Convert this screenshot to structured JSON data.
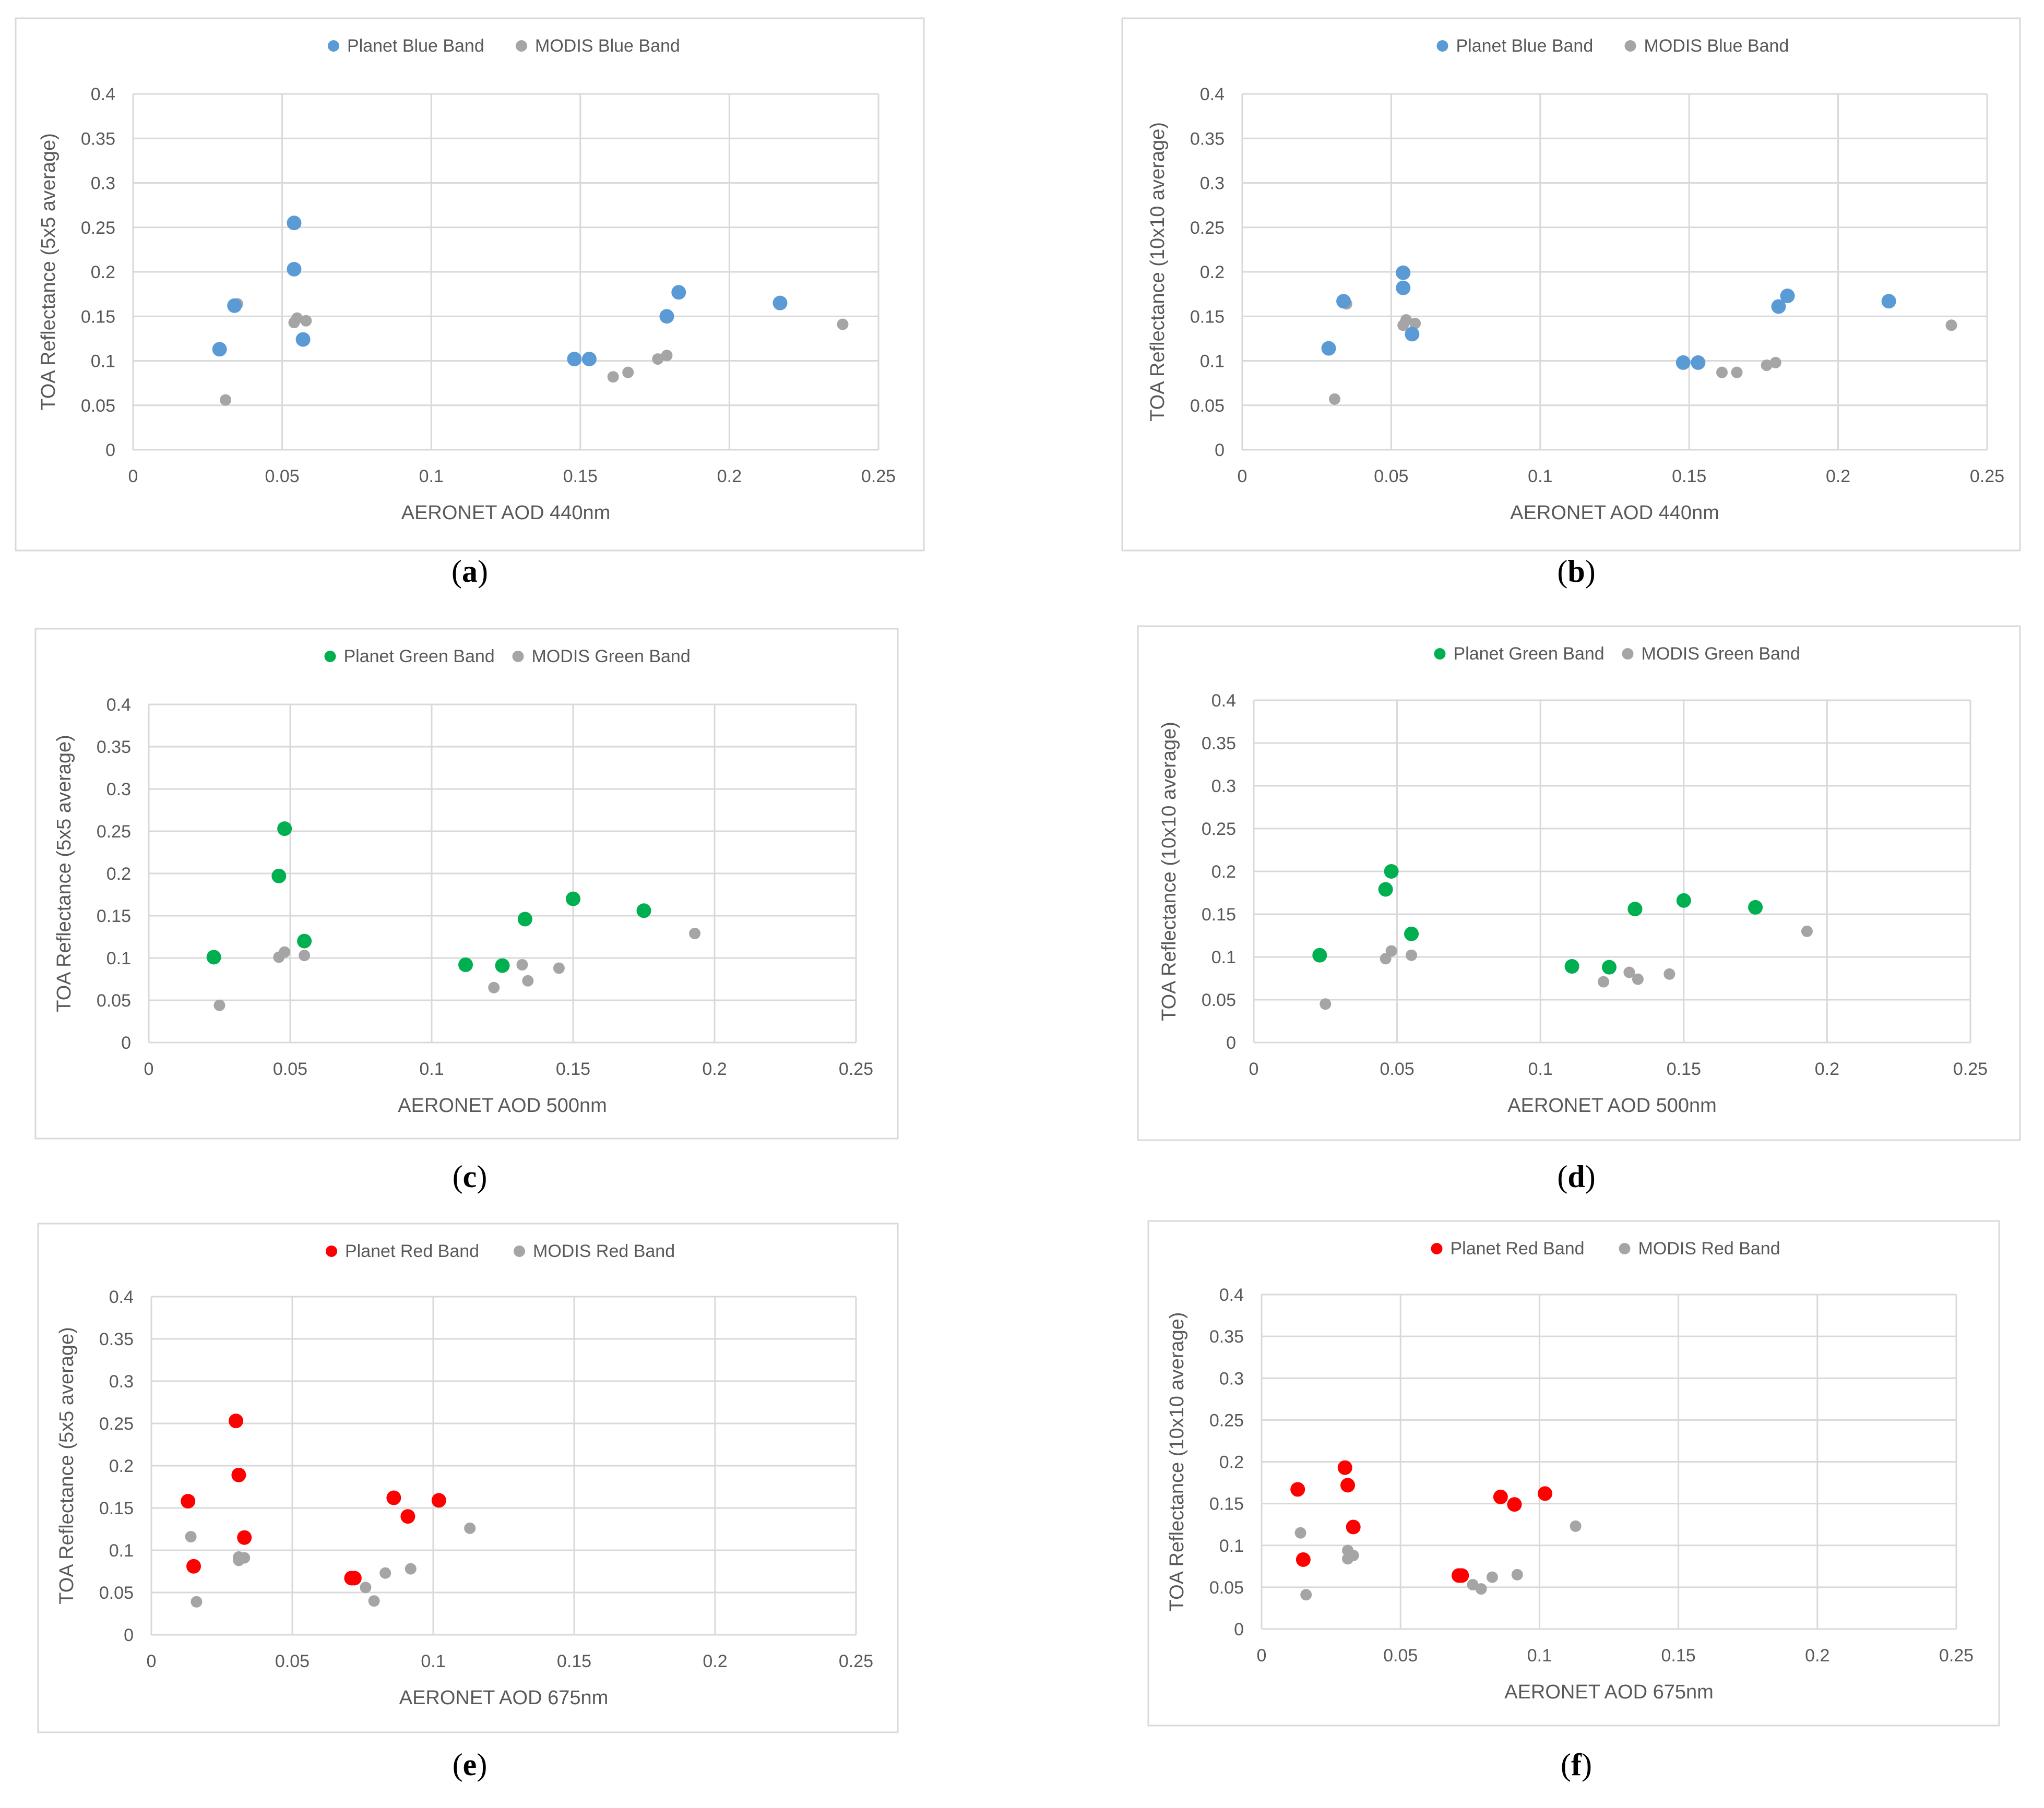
{
  "chart_data": [
    {
      "panel": "a",
      "caption_letter": "a",
      "type": "scatter",
      "xlabel": "AERONET AOD 440nm",
      "ylabel": "TOA Reflectance (5x5 average)",
      "xlim": [
        0,
        0.25
      ],
      "ylim": [
        0,
        0.4
      ],
      "xticks": [
        "0",
        "0.05",
        "0.1",
        "0.15",
        "0.2",
        "0.25"
      ],
      "yticks": [
        "0",
        "0.05",
        "0.1",
        "0.15",
        "0.2",
        "0.25",
        "0.3",
        "0.35",
        "0.4"
      ],
      "legend_position": "top-center",
      "series": [
        {
          "name": "Planet Blue Band",
          "color": "#5b9bd5",
          "points": [
            [
              0.029,
              0.113
            ],
            [
              0.034,
              0.162
            ],
            [
              0.054,
              0.255
            ],
            [
              0.054,
              0.203
            ],
            [
              0.057,
              0.124
            ],
            [
              0.148,
              0.102
            ],
            [
              0.153,
              0.102
            ],
            [
              0.179,
              0.15
            ],
            [
              0.183,
              0.177
            ],
            [
              0.217,
              0.165
            ]
          ]
        },
        {
          "name": "MODIS Blue Band",
          "color": "#a5a5a5",
          "points": [
            [
              0.031,
              0.056
            ],
            [
              0.035,
              0.164
            ],
            [
              0.054,
              0.143
            ],
            [
              0.055,
              0.148
            ],
            [
              0.058,
              0.145
            ],
            [
              0.161,
              0.082
            ],
            [
              0.166,
              0.087
            ],
            [
              0.176,
              0.102
            ],
            [
              0.179,
              0.106
            ],
            [
              0.238,
              0.141
            ]
          ]
        }
      ]
    },
    {
      "panel": "b",
      "caption_letter": "b",
      "type": "scatter",
      "xlabel": "AERONET AOD 440nm",
      "ylabel": "TOA Reflectance (10x10 average)",
      "xlim": [
        0,
        0.25
      ],
      "ylim": [
        0,
        0.4
      ],
      "xticks": [
        "0",
        "0.05",
        "0.1",
        "0.15",
        "0.2",
        "0.25"
      ],
      "yticks": [
        "0",
        "0.05",
        "0.1",
        "0.15",
        "0.2",
        "0.25",
        "0.3",
        "0.35",
        "0.4"
      ],
      "legend_position": "top-center",
      "series": [
        {
          "name": "Planet Blue Band",
          "color": "#5b9bd5",
          "points": [
            [
              0.029,
              0.114
            ],
            [
              0.034,
              0.167
            ],
            [
              0.054,
              0.199
            ],
            [
              0.054,
              0.182
            ],
            [
              0.057,
              0.13
            ],
            [
              0.148,
              0.098
            ],
            [
              0.153,
              0.098
            ],
            [
              0.18,
              0.161
            ],
            [
              0.183,
              0.173
            ],
            [
              0.217,
              0.167
            ]
          ]
        },
        {
          "name": "MODIS Blue Band",
          "color": "#a5a5a5",
          "points": [
            [
              0.031,
              0.057
            ],
            [
              0.035,
              0.164
            ],
            [
              0.054,
              0.14
            ],
            [
              0.055,
              0.146
            ],
            [
              0.058,
              0.142
            ],
            [
              0.161,
              0.087
            ],
            [
              0.166,
              0.087
            ],
            [
              0.176,
              0.095
            ],
            [
              0.179,
              0.098
            ],
            [
              0.238,
              0.14
            ]
          ]
        }
      ]
    },
    {
      "panel": "c",
      "caption_letter": "c",
      "type": "scatter",
      "xlabel": "AERONET AOD 500nm",
      "ylabel": "TOA Reflectance (5x5 average)",
      "xlim": [
        0,
        0.25
      ],
      "ylim": [
        0,
        0.4
      ],
      "xticks": [
        "0",
        "0.05",
        "0.1",
        "0.15",
        "0.2",
        "0.25"
      ],
      "yticks": [
        "0",
        "0.05",
        "0.1",
        "0.15",
        "0.2",
        "0.25",
        "0.3",
        "0.35",
        "0.4"
      ],
      "legend_position": "top-center",
      "series": [
        {
          "name": "Planet Green Band",
          "color": "#00b050",
          "points": [
            [
              0.023,
              0.101
            ],
            [
              0.046,
              0.197
            ],
            [
              0.048,
              0.253
            ],
            [
              0.055,
              0.12
            ],
            [
              0.112,
              0.092
            ],
            [
              0.125,
              0.091
            ],
            [
              0.133,
              0.146
            ],
            [
              0.15,
              0.17
            ],
            [
              0.175,
              0.156
            ]
          ]
        },
        {
          "name": "MODIS Green Band",
          "color": "#a5a5a5",
          "points": [
            [
              0.025,
              0.044
            ],
            [
              0.046,
              0.101
            ],
            [
              0.048,
              0.107
            ],
            [
              0.055,
              0.103
            ],
            [
              0.122,
              0.065
            ],
            [
              0.132,
              0.092
            ],
            [
              0.134,
              0.073
            ],
            [
              0.145,
              0.088
            ],
            [
              0.193,
              0.129
            ]
          ]
        }
      ]
    },
    {
      "panel": "d",
      "caption_letter": "d",
      "type": "scatter",
      "xlabel": "AERONET AOD 500nm",
      "ylabel": "TOA Reflectance (10x10 average)",
      "xlim": [
        0,
        0.25
      ],
      "ylim": [
        0,
        0.4
      ],
      "xticks": [
        "0",
        "0.05",
        "0.1",
        "0.15",
        "0.2",
        "0.25"
      ],
      "yticks": [
        "0",
        "0.05",
        "0.1",
        "0.15",
        "0.2",
        "0.25",
        "0.3",
        "0.35",
        "0.4"
      ],
      "legend_position": "top-center",
      "series": [
        {
          "name": "Planet Green Band",
          "color": "#00b050",
          "points": [
            [
              0.023,
              0.102
            ],
            [
              0.046,
              0.179
            ],
            [
              0.048,
              0.2
            ],
            [
              0.055,
              0.127
            ],
            [
              0.111,
              0.089
            ],
            [
              0.124,
              0.088
            ],
            [
              0.133,
              0.156
            ],
            [
              0.15,
              0.166
            ],
            [
              0.175,
              0.158
            ]
          ]
        },
        {
          "name": "MODIS Green Band",
          "color": "#a5a5a5",
          "points": [
            [
              0.025,
              0.045
            ],
            [
              0.046,
              0.098
            ],
            [
              0.048,
              0.107
            ],
            [
              0.055,
              0.102
            ],
            [
              0.122,
              0.071
            ],
            [
              0.131,
              0.082
            ],
            [
              0.134,
              0.074
            ],
            [
              0.145,
              0.08
            ],
            [
              0.193,
              0.13
            ]
          ]
        }
      ]
    },
    {
      "panel": "e",
      "caption_letter": "e",
      "type": "scatter",
      "xlabel": "AERONET AOD 675nm",
      "ylabel": "TOA Reflectance (5x5 average)",
      "xlim": [
        0,
        0.25
      ],
      "ylim": [
        0,
        0.4
      ],
      "xticks": [
        "0",
        "0.05",
        "0.1",
        "0.15",
        "0.2",
        "0.25"
      ],
      "yticks": [
        "0",
        "0.05",
        "0.1",
        "0.15",
        "0.2",
        "0.25",
        "0.3",
        "0.35",
        "0.4"
      ],
      "legend_position": "top-center",
      "series": [
        {
          "name": "Planet Red Band",
          "color": "#ff0000",
          "points": [
            [
              0.013,
              0.158
            ],
            [
              0.015,
              0.081
            ],
            [
              0.03,
              0.253
            ],
            [
              0.031,
              0.189
            ],
            [
              0.033,
              0.115
            ],
            [
              0.071,
              0.067
            ],
            [
              0.072,
              0.067
            ],
            [
              0.086,
              0.162
            ],
            [
              0.091,
              0.14
            ],
            [
              0.102,
              0.159
            ]
          ]
        },
        {
          "name": "MODIS Red Band",
          "color": "#a5a5a5",
          "points": [
            [
              0.014,
              0.116
            ],
            [
              0.016,
              0.039
            ],
            [
              0.031,
              0.092
            ],
            [
              0.031,
              0.088
            ],
            [
              0.033,
              0.091
            ],
            [
              0.076,
              0.056
            ],
            [
              0.079,
              0.04
            ],
            [
              0.083,
              0.073
            ],
            [
              0.092,
              0.078
            ],
            [
              0.113,
              0.126
            ]
          ]
        }
      ]
    },
    {
      "panel": "f",
      "caption_letter": "f",
      "type": "scatter",
      "xlabel": "AERONET AOD 675nm",
      "ylabel": "TOA Reflectance (10x10 average)",
      "xlim": [
        0,
        0.25
      ],
      "ylim": [
        0,
        0.4
      ],
      "xticks": [
        "0",
        "0.05",
        "0.1",
        "0.15",
        "0.2",
        "0.25"
      ],
      "yticks": [
        "0",
        "0.05",
        "0.1",
        "0.15",
        "0.2",
        "0.25",
        "0.3",
        "0.35",
        "0.4"
      ],
      "legend_position": "top-center",
      "series": [
        {
          "name": "Planet Red Band",
          "color": "#ff0000",
          "points": [
            [
              0.013,
              0.167
            ],
            [
              0.015,
              0.083
            ],
            [
              0.03,
              0.193
            ],
            [
              0.031,
              0.172
            ],
            [
              0.033,
              0.122
            ],
            [
              0.071,
              0.064
            ],
            [
              0.072,
              0.064
            ],
            [
              0.086,
              0.158
            ],
            [
              0.091,
              0.149
            ],
            [
              0.102,
              0.162
            ]
          ]
        },
        {
          "name": "MODIS Red Band",
          "color": "#a5a5a5",
          "points": [
            [
              0.014,
              0.115
            ],
            [
              0.016,
              0.041
            ],
            [
              0.031,
              0.094
            ],
            [
              0.031,
              0.084
            ],
            [
              0.033,
              0.088
            ],
            [
              0.076,
              0.053
            ],
            [
              0.079,
              0.048
            ],
            [
              0.083,
              0.062
            ],
            [
              0.092,
              0.065
            ],
            [
              0.113,
              0.123
            ]
          ]
        }
      ]
    }
  ]
}
